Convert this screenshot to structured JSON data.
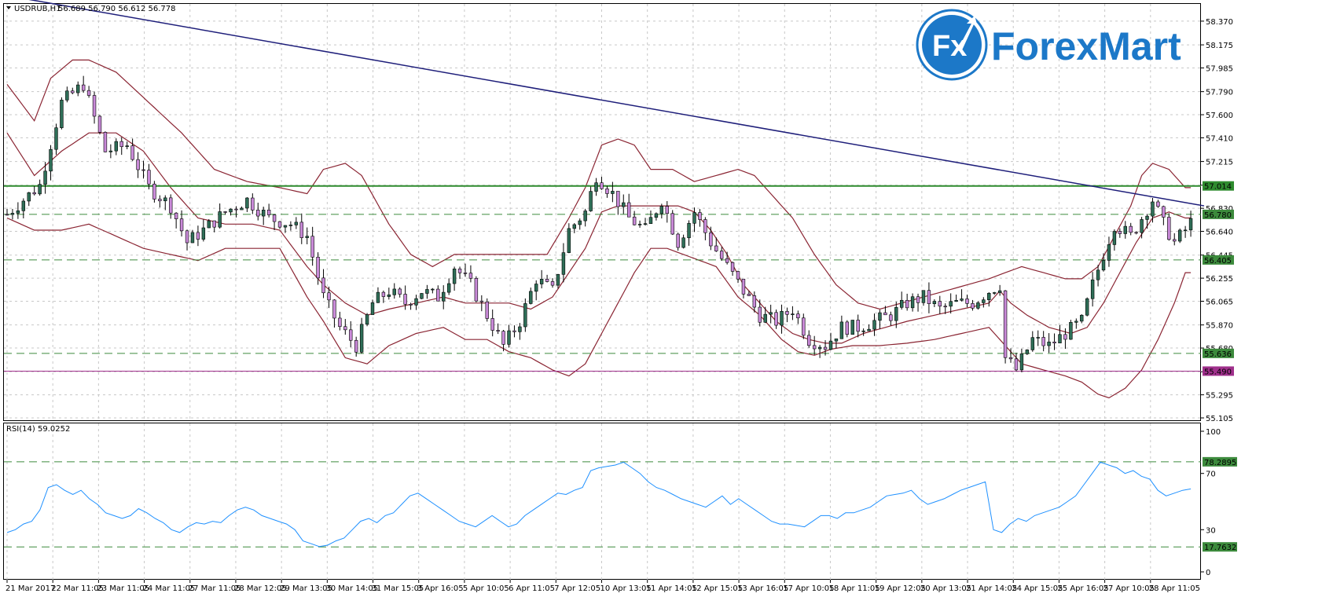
{
  "chart_header": {
    "symbol_label": "USDRUB,H1",
    "ohlc_text": "56.689 56.790 56.612 56.778"
  },
  "logo": {
    "fx_mark": "Fx",
    "brand": "ForexMart",
    "color": "#1c78c8"
  },
  "colors": {
    "bull_body": "#2f6f58",
    "bear_body": "#c98ad8",
    "wick": "#000000",
    "bollinger": "#8a2432",
    "trendline": "#1e1e7a",
    "resistance": "#2e8b2e",
    "level_dash": "#3c8a3c",
    "support_line": "#a0308c",
    "rsi_line": "#1e90ff",
    "grid": "#c8c8c8"
  },
  "chart_data": [
    {
      "type": "candlestick",
      "symbol": "USDRUB",
      "timeframe": "H1",
      "ylim": [
        55.105,
        58.46
      ],
      "y_ticks": [
        "58.370",
        "58.175",
        "57.985",
        "57.790",
        "57.600",
        "57.410",
        "57.215",
        "57.020",
        "56.830",
        "56.640",
        "56.445",
        "56.255",
        "56.065",
        "55.870",
        "55.680",
        "55.485",
        "55.295",
        "55.105"
      ],
      "x_ticks": [
        "21 Mar 2017",
        "22 Mar 11:05",
        "23 Mar 11:05",
        "24 Mar 11:05",
        "27 Mar 11:05",
        "28 Mar 12:05",
        "29 Mar 13:05",
        "30 Mar 14:05",
        "31 Mar 15:05",
        "3 Apr 16:05",
        "5 Apr 10:05",
        "6 Apr 11:05",
        "7 Apr 12:05",
        "10 Apr 13:05",
        "11 Apr 14:05",
        "12 Apr 15:05",
        "13 Apr 16:05",
        "17 Apr 10:05",
        "18 Apr 11:05",
        "19 Apr 12:05",
        "20 Apr 13:05",
        "21 Apr 14:05",
        "24 Apr 15:05",
        "25 Apr 16:05",
        "27 Apr 10:05",
        "28 Apr 11:05"
      ],
      "close_path": [
        [
          0,
          56.78
        ],
        [
          6,
          57.02
        ],
        [
          10,
          57.7
        ],
        [
          14,
          57.85
        ],
        [
          18,
          57.3
        ],
        [
          22,
          57.35
        ],
        [
          26,
          57.0
        ],
        [
          30,
          56.85
        ],
        [
          33,
          56.55
        ],
        [
          36,
          56.65
        ],
        [
          40,
          56.8
        ],
        [
          44,
          56.9
        ],
        [
          48,
          56.75
        ],
        [
          52,
          56.7
        ],
        [
          55,
          56.6
        ],
        [
          58,
          56.1
        ],
        [
          61,
          55.85
        ],
        [
          64,
          55.7
        ],
        [
          67,
          56.05
        ],
        [
          70,
          56.15
        ],
        [
          73,
          56.05
        ],
        [
          76,
          56.15
        ],
        [
          79,
          56.1
        ],
        [
          82,
          56.35
        ],
        [
          85,
          56.2
        ],
        [
          88,
          55.95
        ],
        [
          91,
          55.7
        ],
        [
          94,
          55.9
        ],
        [
          97,
          56.25
        ],
        [
          100,
          56.15
        ],
        [
          103,
          56.65
        ],
        [
          106,
          56.8
        ],
        [
          108,
          57.1
        ],
        [
          111,
          56.95
        ],
        [
          114,
          56.75
        ],
        [
          117,
          56.65
        ],
        [
          120,
          56.9
        ],
        [
          123,
          56.55
        ],
        [
          126,
          56.8
        ],
        [
          129,
          56.55
        ],
        [
          132,
          56.35
        ],
        [
          135,
          56.15
        ],
        [
          138,
          55.95
        ],
        [
          141,
          55.9
        ],
        [
          144,
          56.0
        ],
        [
          147,
          55.75
        ],
        [
          150,
          55.7
        ],
        [
          153,
          55.85
        ],
        [
          156,
          55.85
        ],
        [
          159,
          55.9
        ],
        [
          162,
          55.95
        ],
        [
          165,
          56.05
        ],
        [
          168,
          56.1
        ],
        [
          171,
          56.0
        ],
        [
          174,
          56.05
        ],
        [
          177,
          56.05
        ],
        [
          180,
          56.15
        ],
        [
          182,
          56.2
        ],
        [
          183,
          55.6
        ],
        [
          185,
          55.5
        ],
        [
          188,
          55.75
        ],
        [
          191,
          55.7
        ],
        [
          194,
          55.8
        ],
        [
          197,
          55.9
        ],
        [
          199,
          56.2
        ],
        [
          201,
          56.45
        ],
        [
          203,
          56.7
        ],
        [
          206,
          56.6
        ],
        [
          208,
          56.75
        ],
        [
          210,
          56.9
        ],
        [
          212,
          56.7
        ],
        [
          214,
          56.55
        ],
        [
          216,
          56.65
        ],
        [
          218,
          56.78
        ]
      ],
      "bollinger_upper": [
        [
          0,
          57.85
        ],
        [
          5,
          57.55
        ],
        [
          8,
          57.9
        ],
        [
          12,
          58.05
        ],
        [
          15,
          58.05
        ],
        [
          20,
          57.95
        ],
        [
          26,
          57.7
        ],
        [
          32,
          57.45
        ],
        [
          38,
          57.15
        ],
        [
          44,
          57.05
        ],
        [
          50,
          57.0
        ],
        [
          55,
          56.95
        ],
        [
          58,
          57.15
        ],
        [
          62,
          57.2
        ],
        [
          65,
          57.1
        ],
        [
          70,
          56.7
        ],
        [
          74,
          56.45
        ],
        [
          78,
          56.35
        ],
        [
          82,
          56.45
        ],
        [
          88,
          56.45
        ],
        [
          94,
          56.45
        ],
        [
          99,
          56.45
        ],
        [
          103,
          56.75
        ],
        [
          106,
          57.0
        ],
        [
          109,
          57.35
        ],
        [
          112,
          57.4
        ],
        [
          115,
          57.35
        ],
        [
          118,
          57.15
        ],
        [
          122,
          57.15
        ],
        [
          126,
          57.05
        ],
        [
          130,
          57.1
        ],
        [
          134,
          57.15
        ],
        [
          137,
          57.1
        ],
        [
          140,
          56.95
        ],
        [
          144,
          56.75
        ],
        [
          148,
          56.45
        ],
        [
          152,
          56.2
        ],
        [
          156,
          56.05
        ],
        [
          160,
          56.0
        ],
        [
          164,
          56.05
        ],
        [
          168,
          56.1
        ],
        [
          172,
          56.15
        ],
        [
          176,
          56.2
        ],
        [
          180,
          56.25
        ],
        [
          183,
          56.3
        ],
        [
          186,
          56.35
        ],
        [
          190,
          56.3
        ],
        [
          194,
          56.25
        ],
        [
          197,
          56.25
        ],
        [
          200,
          56.35
        ],
        [
          203,
          56.6
        ],
        [
          206,
          56.85
        ],
        [
          208,
          57.1
        ],
        [
          210,
          57.2
        ],
        [
          213,
          57.15
        ],
        [
          216,
          57.0
        ]
      ],
      "bollinger_middle": [
        [
          0,
          57.45
        ],
        [
          5,
          57.1
        ],
        [
          10,
          57.3
        ],
        [
          15,
          57.45
        ],
        [
          20,
          57.45
        ],
        [
          25,
          57.3
        ],
        [
          30,
          57.0
        ],
        [
          35,
          56.75
        ],
        [
          40,
          56.7
        ],
        [
          45,
          56.7
        ],
        [
          50,
          56.65
        ],
        [
          55,
          56.35
        ],
        [
          58,
          56.2
        ],
        [
          62,
          56.05
        ],
        [
          66,
          55.95
        ],
        [
          70,
          56.0
        ],
        [
          75,
          56.05
        ],
        [
          80,
          56.1
        ],
        [
          84,
          56.05
        ],
        [
          88,
          56.05
        ],
        [
          92,
          56.05
        ],
        [
          96,
          56.0
        ],
        [
          100,
          56.1
        ],
        [
          103,
          56.3
        ],
        [
          106,
          56.5
        ],
        [
          109,
          56.8
        ],
        [
          112,
          56.85
        ],
        [
          115,
          56.85
        ],
        [
          119,
          56.85
        ],
        [
          123,
          56.85
        ],
        [
          126,
          56.8
        ],
        [
          129,
          56.65
        ],
        [
          132,
          56.45
        ],
        [
          135,
          56.2
        ],
        [
          138,
          56.05
        ],
        [
          141,
          55.9
        ],
        [
          144,
          55.8
        ],
        [
          147,
          55.75
        ],
        [
          150,
          55.72
        ],
        [
          153,
          55.72
        ],
        [
          157,
          55.8
        ],
        [
          161,
          55.85
        ],
        [
          165,
          55.9
        ],
        [
          170,
          55.95
        ],
        [
          175,
          56.0
        ],
        [
          180,
          56.05
        ],
        [
          182,
          56.15
        ],
        [
          184,
          56.05
        ],
        [
          187,
          55.95
        ],
        [
          191,
          55.85
        ],
        [
          195,
          55.8
        ],
        [
          198,
          55.85
        ],
        [
          201,
          56.05
        ],
        [
          204,
          56.3
        ],
        [
          207,
          56.55
        ],
        [
          210,
          56.75
        ],
        [
          213,
          56.8
        ],
        [
          216,
          56.75
        ]
      ],
      "bollinger_lower": [
        [
          0,
          56.75
        ],
        [
          5,
          56.65
        ],
        [
          10,
          56.65
        ],
        [
          15,
          56.7
        ],
        [
          20,
          56.6
        ],
        [
          25,
          56.5
        ],
        [
          30,
          56.45
        ],
        [
          35,
          56.4
        ],
        [
          40,
          56.5
        ],
        [
          45,
          56.5
        ],
        [
          50,
          56.5
        ],
        [
          55,
          56.1
        ],
        [
          58,
          55.9
        ],
        [
          62,
          55.6
        ],
        [
          66,
          55.55
        ],
        [
          70,
          55.7
        ],
        [
          75,
          55.8
        ],
        [
          80,
          55.85
        ],
        [
          84,
          55.75
        ],
        [
          88,
          55.75
        ],
        [
          92,
          55.65
        ],
        [
          96,
          55.6
        ],
        [
          100,
          55.5
        ],
        [
          103,
          55.45
        ],
        [
          106,
          55.55
        ],
        [
          109,
          55.8
        ],
        [
          112,
          56.05
        ],
        [
          115,
          56.3
        ],
        [
          118,
          56.5
        ],
        [
          121,
          56.5
        ],
        [
          124,
          56.45
        ],
        [
          127,
          56.4
        ],
        [
          130,
          56.35
        ],
        [
          134,
          56.1
        ],
        [
          138,
          55.95
        ],
        [
          142,
          55.75
        ],
        [
          145,
          55.65
        ],
        [
          148,
          55.62
        ],
        [
          151,
          55.67
        ],
        [
          155,
          55.7
        ],
        [
          160,
          55.7
        ],
        [
          165,
          55.72
        ],
        [
          170,
          55.75
        ],
        [
          175,
          55.8
        ],
        [
          180,
          55.85
        ],
        [
          183,
          55.7
        ],
        [
          186,
          55.55
        ],
        [
          190,
          55.5
        ],
        [
          194,
          55.45
        ],
        [
          197,
          55.4
        ],
        [
          200,
          55.3
        ],
        [
          202,
          55.27
        ],
        [
          205,
          55.35
        ],
        [
          208,
          55.5
        ],
        [
          211,
          55.75
        ],
        [
          214,
          56.05
        ],
        [
          216,
          56.3
        ]
      ],
      "candle_count": 218,
      "annotations": {
        "trendline": {
          "from": [
            0,
            58.58
          ],
          "to": [
            218,
            56.85
          ]
        },
        "resistance": {
          "value": 57.014,
          "label": "57.014"
        },
        "levels_dashed": [
          {
            "value": 56.78,
            "label": "56.780"
          },
          {
            "value": 56.405,
            "label": "56.405"
          },
          {
            "value": 55.636,
            "label": "55.636"
          }
        ],
        "support": {
          "value": 55.49,
          "label": "55.490"
        }
      }
    },
    {
      "type": "line",
      "name": "RSI(14)",
      "indicator_label": "RSI(14) 59.0252",
      "ylim": [
        0,
        100
      ],
      "y_ticks": [
        "100",
        "70",
        "30",
        "0"
      ],
      "levels": [
        {
          "value": 78.2895,
          "label": "78.2895"
        },
        {
          "value": 17.7632,
          "label": "17.7632"
        }
      ],
      "values": [
        28,
        30,
        34,
        36,
        44,
        60,
        62,
        58,
        55,
        58,
        52,
        48,
        42,
        40,
        38,
        40,
        45,
        42,
        38,
        35,
        30,
        28,
        32,
        35,
        34,
        36,
        35,
        40,
        44,
        46,
        44,
        40,
        38,
        36,
        34,
        30,
        22,
        20,
        18,
        19,
        22,
        24,
        30,
        36,
        38,
        35,
        40,
        42,
        48,
        54,
        56,
        52,
        48,
        44,
        40,
        36,
        34,
        32,
        36,
        40,
        36,
        32,
        34,
        40,
        44,
        48,
        52,
        56,
        55,
        58,
        60,
        72,
        74,
        75,
        76,
        78,
        74,
        70,
        64,
        60,
        58,
        55,
        52,
        50,
        48,
        46,
        50,
        54,
        48,
        52,
        48,
        44,
        40,
        36,
        34,
        34,
        33,
        32,
        36,
        40,
        40,
        38,
        42,
        42,
        44,
        46,
        50,
        54,
        55,
        56,
        58,
        52,
        48,
        50,
        52,
        55,
        58,
        60,
        62,
        64,
        30,
        28,
        34,
        38,
        36,
        40,
        42,
        44,
        46,
        50,
        54,
        62,
        70,
        78,
        76,
        74,
        70,
        72,
        68,
        66,
        58,
        54,
        56,
        58,
        59
      ]
    }
  ]
}
